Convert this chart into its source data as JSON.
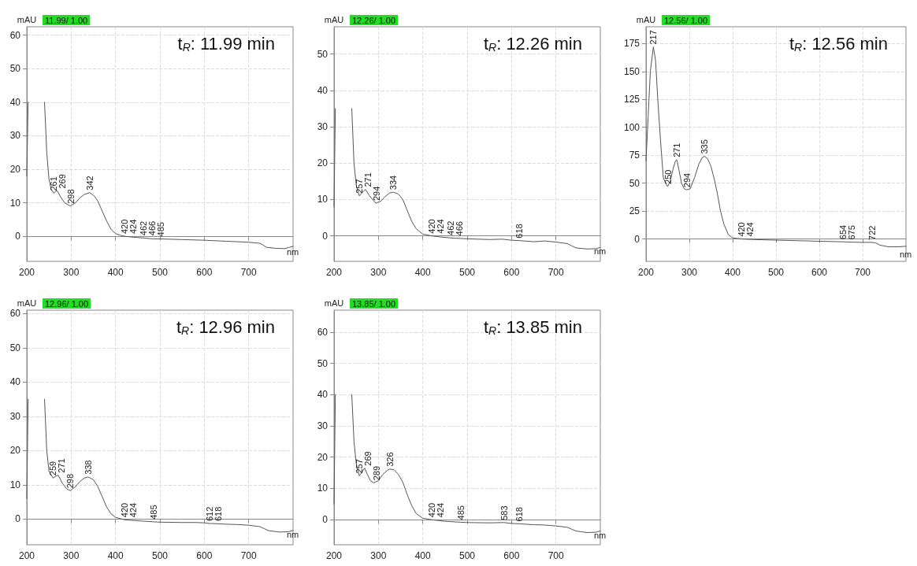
{
  "chart_data": [
    {
      "type": "line",
      "title": "t$_{R}$: 11.99 min",
      "xlabel": "nm",
      "ylabel": "mAU",
      "xlim": [
        200,
        800
      ],
      "xticks": [
        200,
        300,
        400,
        500,
        600,
        700
      ],
      "ylim": [
        -7.5,
        62.5
      ],
      "yticks": [
        0,
        10,
        20,
        30,
        40,
        50,
        60
      ],
      "grid": true,
      "marker": "none",
      "annotations": [
        "11.99/ 1.00",
        {
          "text": "261",
          "x": 261,
          "y": 12.8
        },
        {
          "text": "269",
          "x": 269,
          "y": 13.5
        },
        {
          "text": "298",
          "x": 298,
          "y": 9
        },
        {
          "text": "342",
          "x": 342,
          "y": 13
        },
        {
          "text": "420",
          "x": 420,
          "y": 0
        },
        {
          "text": "424",
          "x": 424,
          "y": 0
        },
        {
          "text": "462",
          "x": 462,
          "y": -0.5
        },
        {
          "text": "466",
          "x": 466,
          "y": -0.5
        },
        {
          "text": "485",
          "x": 485,
          "y": -0.8
        }
      ],
      "series": [
        {
          "color": "#555555",
          "x": [
            200,
            203,
            205.5,
            220,
            234,
            240,
            245,
            250,
            255,
            261,
            265,
            269,
            275,
            285,
            298,
            310,
            320,
            330,
            342,
            352,
            360,
            370,
            380,
            390,
            400,
            410,
            420,
            440,
            460,
            485,
            500,
            550,
            600,
            650,
            700,
            725,
            732,
            740,
            760,
            780,
            790,
            800
          ],
          "values": [
            18,
            40,
            null,
            null,
            null,
            40,
            25,
            17,
            14,
            12.8,
            13.5,
            13.5,
            12,
            10,
            9,
            10,
            11.5,
            12.5,
            13,
            12,
            10.5,
            7.5,
            4.5,
            2,
            0.8,
            0.3,
            0,
            -0.3,
            -0.5,
            -0.8,
            -0.8,
            -1,
            -1.2,
            -1.5,
            -1.8,
            -2.1,
            -2.6,
            -3.3,
            -3.6,
            -3.7,
            -3.4,
            -3
          ]
        }
      ]
    },
    {
      "type": "line",
      "title": "t$_{R}$: 12.26 min",
      "xlabel": "nm",
      "ylabel": "mAU",
      "xlim": [
        200,
        800
      ],
      "xticks": [
        200,
        300,
        400,
        500,
        600,
        700
      ],
      "ylim": [
        -7,
        57.5
      ],
      "yticks": [
        0,
        10,
        20,
        30,
        40,
        50
      ],
      "grid": true,
      "marker": "none",
      "annotations": [
        "12.26/ 1.00",
        {
          "text": "257",
          "x": 257,
          "y": 11
        },
        {
          "text": "271",
          "x": 271,
          "y": 12.8
        },
        {
          "text": "294",
          "x": 294,
          "y": 9
        },
        {
          "text": "334",
          "x": 334,
          "y": 12
        },
        {
          "text": "420",
          "x": 420,
          "y": 0
        },
        {
          "text": "424",
          "x": 424,
          "y": 0
        },
        {
          "text": "462",
          "x": 462,
          "y": -0.5
        },
        {
          "text": "466",
          "x": 466,
          "y": -0.6
        },
        {
          "text": "618",
          "x": 618,
          "y": -1.3
        }
      ],
      "series": [
        {
          "color": "#555555",
          "x": [
            200,
            203,
            205.5,
            220,
            234,
            240,
            245,
            250,
            257,
            264,
            271,
            280,
            294,
            305,
            315,
            325,
            334,
            345,
            355,
            365,
            375,
            385,
            400,
            420,
            440,
            466,
            500,
            550,
            580,
            600,
            618,
            650,
            675,
            700,
            725,
            735,
            745,
            770,
            790,
            800
          ],
          "values": [
            8,
            35,
            null,
            null,
            null,
            35,
            20,
            14,
            11,
            12,
            12.8,
            11,
            9,
            9.5,
            10.8,
            11.8,
            12,
            11.5,
            10,
            7,
            4,
            2,
            0.5,
            0,
            -0.3,
            -0.6,
            -0.8,
            -1,
            -0.9,
            -1.2,
            -1.3,
            -1.6,
            -1.4,
            -1.7,
            -2.1,
            -2.7,
            -3.3,
            -3.6,
            -3.5,
            -3.2
          ]
        }
      ]
    },
    {
      "type": "line",
      "title": "t$_{R}$: 12.56 min",
      "xlabel": "nm",
      "ylabel": "mAU",
      "xlim": [
        200,
        800
      ],
      "xticks": [
        200,
        300,
        400,
        500,
        600,
        700
      ],
      "ylim": [
        -20,
        190
      ],
      "yticks": [
        0,
        25,
        50,
        75,
        100,
        125,
        150,
        175
      ],
      "grid": true,
      "marker": "none",
      "annotations": [
        "12.56/ 1.00",
        {
          "text": "217",
          "x": 217,
          "y": 172
        },
        {
          "text": "250",
          "x": 250,
          "y": 47
        },
        {
          "text": "271",
          "x": 271,
          "y": 71
        },
        {
          "text": "294",
          "x": 294,
          "y": 44
        },
        {
          "text": "335",
          "x": 335,
          "y": 74
        },
        {
          "text": "420",
          "x": 420,
          "y": 0
        },
        {
          "text": "424",
          "x": 424,
          "y": 0
        },
        {
          "text": "654",
          "x": 654,
          "y": -2.5
        },
        {
          "text": "675",
          "x": 675,
          "y": -2.8
        },
        {
          "text": "722",
          "x": 722,
          "y": -3
        }
      ],
      "series": [
        {
          "color": "#555555",
          "x": [
            200,
            205,
            210,
            217,
            222,
            228,
            235,
            240,
            245,
            250,
            256,
            262,
            268,
            271,
            276,
            282,
            288,
            294,
            302,
            312,
            322,
            330,
            335,
            342,
            350,
            358,
            365,
            372,
            380,
            390,
            400,
            420,
            450,
            500,
            550,
            600,
            654,
            675,
            700,
            722,
            730,
            740,
            760,
            780,
            800
          ],
          "values": [
            70,
            110,
            150,
            172,
            160,
            120,
            80,
            55,
            50,
            47,
            52,
            62,
            70,
            71,
            62,
            50,
            45,
            44,
            45,
            55,
            67,
            73,
            74,
            72,
            65,
            53,
            40,
            25,
            13,
            4,
            1,
            0,
            -0.5,
            -1,
            -1.5,
            -2,
            -2.5,
            -2.8,
            -3,
            -3,
            -3.5,
            -5.5,
            -7,
            -7,
            -6.5
          ]
        }
      ]
    },
    {
      "type": "line",
      "title": "t$_{R}$: 12.96 min",
      "xlabel": "nm",
      "ylabel": "mAU",
      "xlim": [
        200,
        800
      ],
      "xticks": [
        200,
        300,
        400,
        500,
        600,
        700
      ],
      "ylim": [
        -7.5,
        61
      ],
      "yticks": [
        0,
        10,
        20,
        30,
        40,
        50,
        60
      ],
      "grid": true,
      "marker": "none",
      "annotations": [
        "12.96/ 1.00",
        {
          "text": "259",
          "x": 259,
          "y": 12
        },
        {
          "text": "271",
          "x": 271,
          "y": 12.8
        },
        {
          "text": "298",
          "x": 298,
          "y": 8.3
        },
        {
          "text": "338",
          "x": 338,
          "y": 12.3
        },
        {
          "text": "420",
          "x": 420,
          "y": -0.2
        },
        {
          "text": "424",
          "x": 424,
          "y": -0.2
        },
        {
          "text": "485",
          "x": 485,
          "y": -0.8
        },
        {
          "text": "612",
          "x": 612,
          "y": -1.3
        },
        {
          "text": "618",
          "x": 618,
          "y": -1.3
        }
      ],
      "series": [
        {
          "color": "#555555",
          "x": [
            200,
            203,
            205.5,
            220,
            234,
            240,
            245,
            250,
            259,
            265,
            271,
            280,
            290,
            298,
            310,
            320,
            330,
            338,
            350,
            360,
            370,
            380,
            390,
            400,
            420,
            450,
            485,
            500,
            550,
            580,
            600,
            612,
            618,
            650,
            675,
            700,
            725,
            735,
            745,
            770,
            790,
            800
          ],
          "values": [
            6,
            35,
            null,
            null,
            null,
            35,
            20,
            14,
            12,
            12.5,
            12.8,
            10.5,
            8.8,
            8.3,
            9.5,
            11,
            12,
            12.3,
            11.5,
            9.5,
            6.5,
            3.5,
            1.5,
            0.5,
            -0.2,
            -0.5,
            -0.8,
            -0.9,
            -1,
            -1,
            -1.1,
            -1.3,
            -1.3,
            -1.5,
            -1.6,
            -1.8,
            -2.2,
            -2.8,
            -3.4,
            -3.8,
            -3.7,
            -3.3
          ]
        }
      ]
    },
    {
      "type": "line",
      "title": "t$_{R}$: 13.85 min",
      "xlabel": "nm",
      "ylabel": "mAU",
      "xlim": [
        200,
        800
      ],
      "xticks": [
        200,
        300,
        400,
        500,
        600,
        700
      ],
      "ylim": [
        -8,
        67
      ],
      "yticks": [
        0,
        10,
        20,
        30,
        40,
        50,
        60
      ],
      "grid": true,
      "marker": "none",
      "annotations": [
        "13.85/ 1.00",
        {
          "text": "257",
          "x": 257,
          "y": 14
        },
        {
          "text": "269",
          "x": 269,
          "y": 16.5
        },
        {
          "text": "289",
          "x": 289,
          "y": 11.8
        },
        {
          "text": "326",
          "x": 326,
          "y": 16.2
        },
        {
          "text": "420",
          "x": 420,
          "y": 0
        },
        {
          "text": "424",
          "x": 424,
          "y": 0
        },
        {
          "text": "485",
          "x": 485,
          "y": -0.8
        },
        {
          "text": "583",
          "x": 583,
          "y": -0.9
        },
        {
          "text": "618",
          "x": 618,
          "y": -1.3
        }
      ],
      "series": [
        {
          "color": "#555555",
          "x": [
            200,
            203,
            205.5,
            220,
            234,
            240,
            245,
            250,
            257,
            262,
            269,
            275,
            282,
            289,
            300,
            310,
            320,
            326,
            335,
            345,
            355,
            365,
            375,
            385,
            400,
            420,
            450,
            485,
            500,
            550,
            583,
            600,
            618,
            650,
            675,
            700,
            725,
            735,
            745,
            770,
            790,
            800
          ],
          "values": [
            5,
            40,
            null,
            null,
            null,
            40,
            25,
            18,
            14,
            15,
            16.5,
            14.5,
            12.5,
            11.8,
            12.5,
            14.5,
            15.8,
            16.2,
            16,
            14.5,
            12,
            8,
            4.5,
            2,
            0.5,
            0,
            -0.5,
            -0.8,
            -0.9,
            -1,
            -0.9,
            -1.2,
            -1.3,
            -1.6,
            -1.7,
            -2,
            -2.4,
            -3,
            -3.6,
            -4.1,
            -4,
            -3.6
          ]
        }
      ]
    }
  ]
}
